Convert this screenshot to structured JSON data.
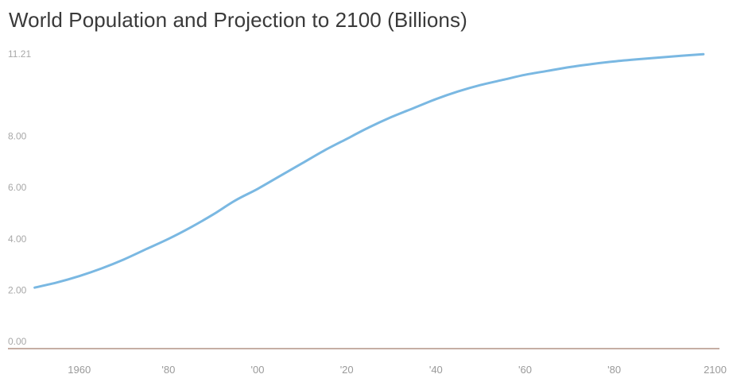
{
  "chart_data": {
    "type": "line",
    "title": "World Population and Projection to 2100 (Billions)",
    "xlabel": "",
    "ylabel": "",
    "xlim": [
      1944,
      2102
    ],
    "ylim": [
      0,
      11.21
    ],
    "y_ticks": [
      {
        "value": 0,
        "label": "0.00"
      },
      {
        "value": 2,
        "label": "2.00"
      },
      {
        "value": 4,
        "label": "4.00"
      },
      {
        "value": 6,
        "label": "6.00"
      },
      {
        "value": 8,
        "label": "8.00"
      },
      {
        "value": 11.21,
        "label": "11.21"
      }
    ],
    "x_ticks": [
      {
        "value": 1960,
        "label": "1960"
      },
      {
        "value": 1980,
        "label": "'80"
      },
      {
        "value": 2000,
        "label": "'00"
      },
      {
        "value": 2020,
        "label": "'20"
      },
      {
        "value": 2040,
        "label": "'40"
      },
      {
        "value": 2060,
        "label": "'60"
      },
      {
        "value": 2080,
        "label": "'80"
      },
      {
        "value": 2100,
        "label": "2100"
      }
    ],
    "grid": false,
    "colors": {
      "line": "#7ab8e2",
      "axis": "#8b5e4a"
    },
    "series": [
      {
        "x": [
          1950,
          1955,
          1960,
          1965,
          1970,
          1975,
          1980,
          1985,
          1990,
          1995,
          2000,
          2005,
          2010,
          2015,
          2020,
          2025,
          2030,
          2035,
          2040,
          2045,
          2050,
          2055,
          2060,
          2065,
          2070,
          2075,
          2080,
          2085,
          2090,
          2095,
          2100
        ],
        "values": [
          2.1,
          2.3,
          2.55,
          2.85,
          3.2,
          3.6,
          4.0,
          4.45,
          4.95,
          5.5,
          5.95,
          6.45,
          6.95,
          7.45,
          7.9,
          8.35,
          8.75,
          9.1,
          9.45,
          9.75,
          10.0,
          10.2,
          10.4,
          10.55,
          10.7,
          10.82,
          10.92,
          11.0,
          11.07,
          11.14,
          11.2
        ]
      }
    ]
  }
}
